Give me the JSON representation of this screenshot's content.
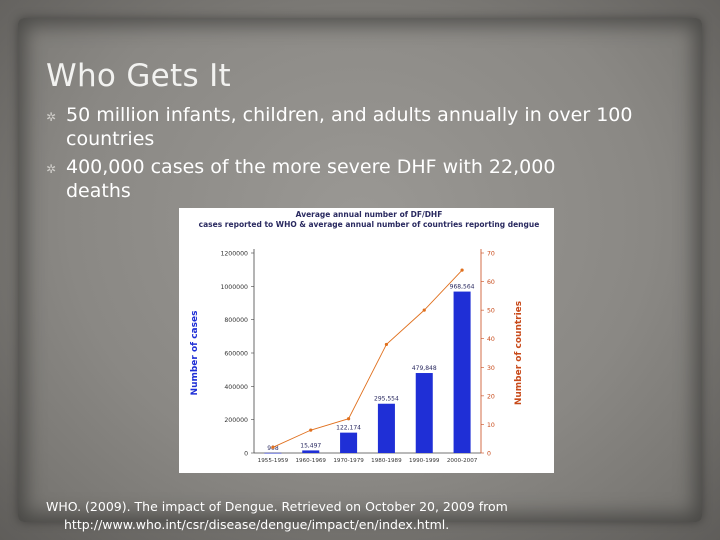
{
  "slide": {
    "title": "Who Gets It",
    "bullets": [
      {
        "text": "50 million infants, children, and adults annually in over 100 countries"
      },
      {
        "text": "400,000 cases of the more severe DHF with 22,000 deaths"
      }
    ],
    "citation_line1": "WHO. (2009). The impact of Dengue. Retrieved on October 20, 2009 from",
    "citation_line2": "http://www.who.int/csr/disease/dengue/impact/en/index.html."
  },
  "chart_data": {
    "type": "bar",
    "title": "Average annual number of DF/DHF cases reported to WHO & average annual number of countries reporting dengue",
    "categories": [
      "1955-1959",
      "1960-1969",
      "1970-1979",
      "1980-1989",
      "1990-1999",
      "2000-2007"
    ],
    "ylabel": "Number of cases",
    "y2label": "Number of countries",
    "ylim": [
      0,
      1200000
    ],
    "y2lim": [
      0,
      70
    ],
    "yticks": [
      "1200000",
      "1000000",
      "800000",
      "600000",
      "400000",
      "200000",
      "0"
    ],
    "y2ticks": [
      "70",
      "60",
      "50",
      "40",
      "30",
      "20",
      "10",
      "0"
    ],
    "series": [
      {
        "values": [
          908,
          15497,
          122174,
          295554,
          479848,
          968564
        ],
        "labels": [
          "908",
          "15,497",
          "122,174",
          "295,554",
          "479,848",
          "968,564"
        ],
        "color": "#1f2fd6"
      },
      {
        "values": [
          2,
          8,
          12,
          38,
          50,
          64
        ],
        "color": "#e0701e"
      }
    ],
    "grid": false
  }
}
